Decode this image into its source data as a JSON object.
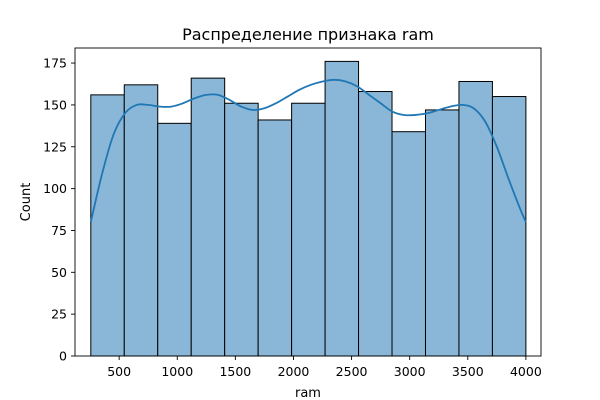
{
  "chart_data": {
    "type": "bar",
    "subtype": "histogram-with-kde",
    "title": "Распределение признака ram",
    "xlabel": "ram",
    "ylabel": "Count",
    "xlim": [
      120,
      4130
    ],
    "ylim": [
      0,
      184
    ],
    "xticks": [
      500,
      1000,
      1500,
      2000,
      2500,
      3000,
      3500,
      4000
    ],
    "yticks": [
      0,
      25,
      50,
      75,
      100,
      125,
      150,
      175
    ],
    "grid": false,
    "bar_color": "#8ab7d8",
    "bar_edge_color": "#000000",
    "line_color": "#1f77b4",
    "bins": [
      {
        "x0": 256,
        "x1": 544,
        "count": 156
      },
      {
        "x0": 544,
        "x1": 832,
        "count": 162
      },
      {
        "x0": 832,
        "x1": 1120,
        "count": 139
      },
      {
        "x0": 1120,
        "x1": 1408,
        "count": 166
      },
      {
        "x0": 1408,
        "x1": 1696,
        "count": 151
      },
      {
        "x0": 1696,
        "x1": 1984,
        "count": 141
      },
      {
        "x0": 1984,
        "x1": 2272,
        "count": 151
      },
      {
        "x0": 2272,
        "x1": 2560,
        "count": 176
      },
      {
        "x0": 2560,
        "x1": 2848,
        "count": 158
      },
      {
        "x0": 2848,
        "x1": 3136,
        "count": 134
      },
      {
        "x0": 3136,
        "x1": 3424,
        "count": 147
      },
      {
        "x0": 3424,
        "x1": 3712,
        "count": 164
      },
      {
        "x0": 3712,
        "x1": 4000,
        "count": 155
      }
    ],
    "kde": {
      "x": [
        256,
        350,
        450,
        550,
        650,
        750,
        850,
        950,
        1050,
        1150,
        1250,
        1350,
        1450,
        1550,
        1650,
        1750,
        1850,
        1950,
        2050,
        2150,
        2250,
        2350,
        2450,
        2550,
        2650,
        2750,
        2850,
        2950,
        3050,
        3150,
        3250,
        3350,
        3450,
        3550,
        3650,
        3750,
        3850,
        3950,
        4000
      ],
      "y": [
        80,
        108,
        132,
        145,
        150,
        150,
        149,
        149,
        151,
        154,
        156,
        156,
        153,
        149,
        147,
        148,
        151,
        155,
        159,
        162,
        164,
        165,
        164,
        161,
        156,
        151,
        146,
        144,
        144,
        145,
        147,
        149,
        150,
        148,
        140,
        125,
        106,
        88,
        80
      ]
    }
  }
}
